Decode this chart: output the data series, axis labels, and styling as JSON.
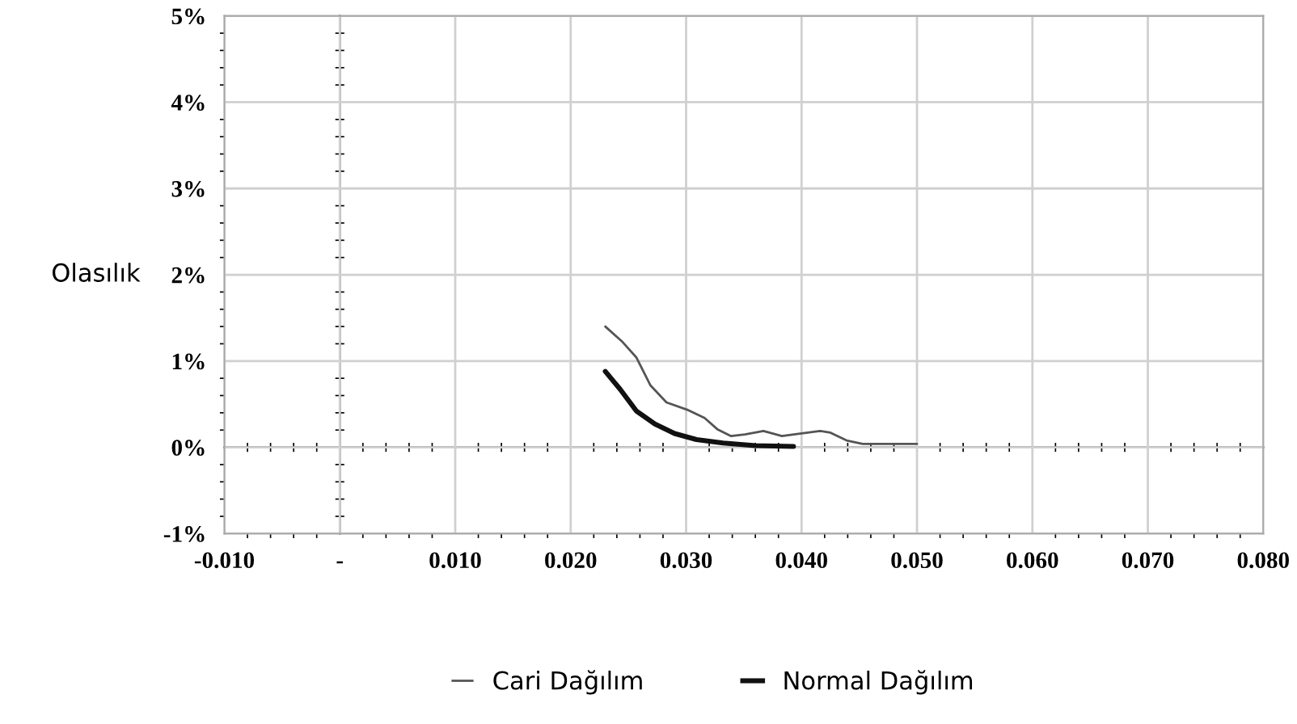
{
  "chart_data": {
    "type": "line",
    "ylabel": "Olasılık",
    "xlim": [
      -0.01,
      0.08
    ],
    "xticks": [
      {
        "value": -0.01,
        "label": "-0.010"
      },
      {
        "value": 0,
        "label": "-"
      },
      {
        "value": 0.01,
        "label": "0.010"
      },
      {
        "value": 0.02,
        "label": "0.020"
      },
      {
        "value": 0.03,
        "label": "0.030"
      },
      {
        "value": 0.04,
        "label": "0.040"
      },
      {
        "value": 0.05,
        "label": "0.050"
      },
      {
        "value": 0.06,
        "label": "0.060"
      },
      {
        "value": 0.07,
        "label": "0.070"
      },
      {
        "value": 0.08,
        "label": "0.080"
      }
    ],
    "ylim": [
      -1,
      5
    ],
    "yticks": [
      {
        "value": -1,
        "label": "-1%"
      },
      {
        "value": 0,
        "label": "0%"
      },
      {
        "value": 1,
        "label": "1%"
      },
      {
        "value": 2,
        "label": "2%"
      },
      {
        "value": 3,
        "label": "3%"
      },
      {
        "value": 4,
        "label": "4%"
      },
      {
        "value": 5,
        "label": "5%"
      }
    ],
    "grid": true,
    "legend": "bottom",
    "marker": "none",
    "line_style": "solid",
    "series": [
      {
        "name": "Cari Dağılım",
        "color": "#555555",
        "x": [
          0.023,
          0.0245,
          0.0257,
          0.0269,
          0.0283,
          0.0302,
          0.0316,
          0.0327,
          0.0339,
          0.0351,
          0.0367,
          0.0383,
          0.04,
          0.0416,
          0.0425,
          0.0439,
          0.0453,
          0.05
        ],
        "values": [
          1.4,
          1.22,
          1.04,
          0.72,
          0.52,
          0.43,
          0.34,
          0.21,
          0.13,
          0.15,
          0.19,
          0.13,
          0.16,
          0.19,
          0.17,
          0.08,
          0.04,
          0.04
        ]
      },
      {
        "name": "Normal Dağılım",
        "color": "#111111",
        "x": [
          0.023,
          0.0243,
          0.0257,
          0.0273,
          0.029,
          0.0309,
          0.0332,
          0.036,
          0.0393
        ],
        "values": [
          0.88,
          0.67,
          0.42,
          0.27,
          0.16,
          0.09,
          0.05,
          0.02,
          0.01
        ]
      }
    ]
  }
}
